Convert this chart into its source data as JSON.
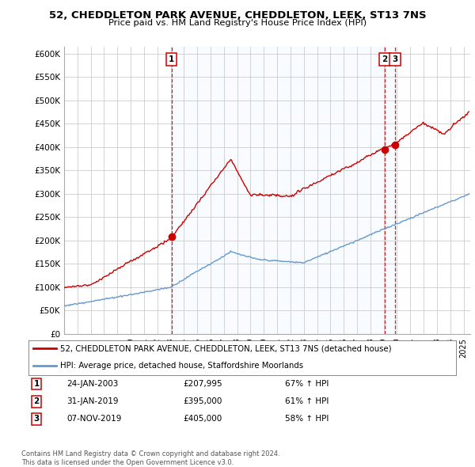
{
  "title": "52, CHEDDLETON PARK AVENUE, CHEDDLETON, LEEK, ST13 7NS",
  "subtitle": "Price paid vs. HM Land Registry's House Price Index (HPI)",
  "yticks": [
    0,
    50000,
    100000,
    150000,
    200000,
    250000,
    300000,
    350000,
    400000,
    450000,
    500000,
    550000,
    600000
  ],
  "ytick_labels": [
    "£0",
    "£50K",
    "£100K",
    "£150K",
    "£200K",
    "£250K",
    "£300K",
    "£350K",
    "£400K",
    "£450K",
    "£500K",
    "£550K",
    "£600K"
  ],
  "ylim": [
    0,
    615000
  ],
  "xlim_start": 1995.0,
  "xlim_end": 2025.5,
  "sale_color": "#cc0000",
  "hpi_color": "#6699cc",
  "vline_color": "#cc0000",
  "shade_color": "#ddeeff",
  "transactions": [
    {
      "label": "1",
      "date_num": 2003.07,
      "price": 207995,
      "date_str": "24-JAN-2003",
      "price_str": "£207,995",
      "pct_str": "67% ↑ HPI"
    },
    {
      "label": "2",
      "date_num": 2019.08,
      "price": 395000,
      "date_str": "31-JAN-2019",
      "price_str": "£395,000",
      "pct_str": "61% ↑ HPI"
    },
    {
      "label": "3",
      "date_num": 2019.85,
      "price": 405000,
      "date_str": "07-NOV-2019",
      "price_str": "£405,000",
      "pct_str": "58% ↑ HPI"
    }
  ],
  "legend_line1": "52, CHEDDLETON PARK AVENUE, CHEDDLETON, LEEK, ST13 7NS (detached house)",
  "legend_line2": "HPI: Average price, detached house, Staffordshire Moorlands",
  "footnote": "Contains HM Land Registry data © Crown copyright and database right 2024.\nThis data is licensed under the Open Government Licence v3.0.",
  "table_rows": [
    [
      "1",
      "24-JAN-2003",
      "£207,995",
      "67% ↑ HPI"
    ],
    [
      "2",
      "31-JAN-2019",
      "£395,000",
      "61% ↑ HPI"
    ],
    [
      "3",
      "07-NOV-2019",
      "£405,000",
      "58% ↑ HPI"
    ]
  ],
  "background_color": "#ffffff",
  "grid_color": "#cccccc"
}
